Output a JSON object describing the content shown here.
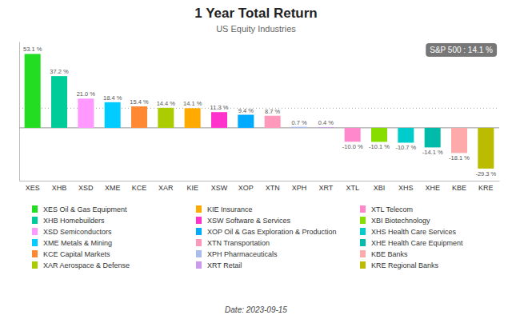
{
  "chart_data": {
    "type": "bar",
    "title": "1 Year Total Return",
    "subtitle": "US Equity Industries",
    "categories": [
      "XES",
      "XHB",
      "XSD",
      "XME",
      "KCE",
      "XAR",
      "KIE",
      "XSW",
      "XOP",
      "XTN",
      "XPH",
      "XRT",
      "XTL",
      "XBI",
      "XHS",
      "XHE",
      "KBE",
      "KRE"
    ],
    "values": [
      53.1,
      37.2,
      21.0,
      18.4,
      15.4,
      14.4,
      14.1,
      11.3,
      9.4,
      8.7,
      0.7,
      0.4,
      -10.0,
      -10.1,
      -10.7,
      -14.1,
      -18.1,
      -29.3
    ],
    "value_labels": [
      "53.1 %",
      "37.2 %",
      "21.0 %",
      "18.4 %",
      "15.4 %",
      "14.4 %",
      "14.1 %",
      "11.3 %",
      "9.4 %",
      "8.7 %",
      "0.7 %",
      "0.4 %",
      "-10.0 %",
      "-10.1 %",
      "-10.7 %",
      "-14.1 %",
      "-18.1 %",
      "-29.3 %"
    ],
    "colors": [
      "#22dd22",
      "#00cc99",
      "#ff99ff",
      "#00ccff",
      "#ff8833",
      "#aacc00",
      "#ffaa00",
      "#ff33cc",
      "#00aaff",
      "#ff99bb",
      "#aabbee",
      "#cc99ee",
      "#ff88cc",
      "#88dd00",
      "#00cccc",
      "#00bbaa",
      "#ffaaaa",
      "#bbbb00"
    ],
    "ylim": [
      -38,
      62
    ],
    "reference_line": 14.1,
    "annotation": "S&P 500 : 14.1 %",
    "caption": "Date: 2023-09-15",
    "legend_labels": [
      "XES Oil & Gas Equipment",
      "XHB Homebuilders",
      "XSD Semiconductors",
      "XME Metals & Mining",
      "KCE Capital Markets",
      "XAR Aerospace & Defense",
      "KIE Insurance",
      "XSW Software & Services",
      "XOP Oil & Gas Exploration & Production",
      "XTN Transportation",
      "XPH Pharmaceuticals",
      "XRT Retail",
      "XTL Telecom",
      "XBI Biotechnology",
      "XHS  Health Care Services",
      "XHE Health Care Equipment",
      "KBE Banks",
      "KRE Regional Banks"
    ],
    "legend": "bottom",
    "data_labels": true,
    "tick_labels": "x",
    "grid": false
  }
}
